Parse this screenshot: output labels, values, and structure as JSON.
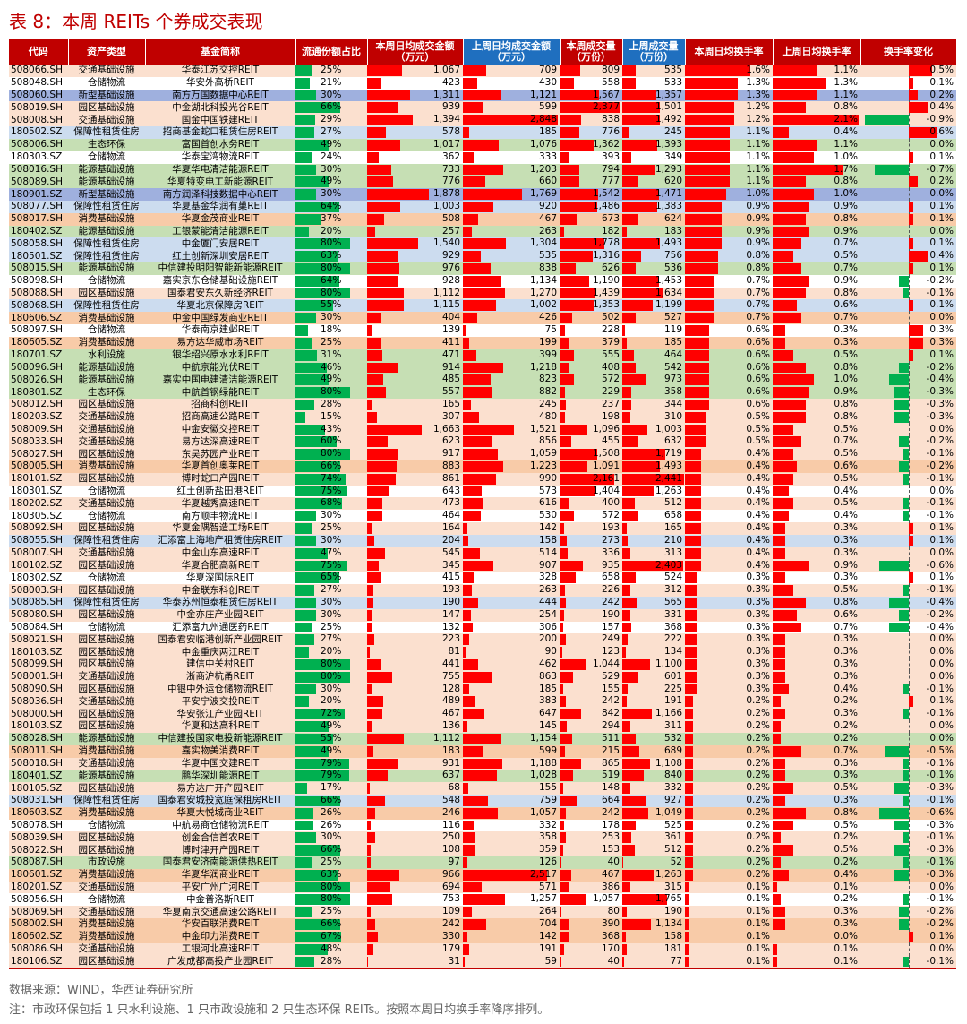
{
  "title": "表 8：本周 REITs 个券成交表现",
  "columns": [
    "代码",
    "资产类型",
    "基金简称",
    "流通份额占比",
    "本周日均成交金额（万元）",
    "上周日均成交金额（万元）",
    "本周成交量（万份）",
    "上周成交量（万份）",
    "本周日均换手率",
    "上周日均换手率",
    "换手率变化"
  ],
  "source": "数据来源：WIND，华西证券研究所",
  "note": "注：市政环保包括 1 只水利设施、1 只市政设施和 2 只生态环保 REITs。按照本周日均换手率降序排列。",
  "bar_colors": {
    "positive": "#ff0000",
    "negative": "#00b050",
    "share": "#00b050"
  },
  "rows": [
    [
      "508066.SH",
      "交通基础设施",
      "华泰江苏交控REIT",
      "25%",
      "1,067",
      "709",
      "809",
      "535",
      "1.6%",
      "1.1%",
      "0.5%",
      "peach"
    ],
    [
      "508048.SH",
      "仓储物流",
      "华安外高桥REIT",
      "21%",
      "423",
      "430",
      "558",
      "533",
      "1.3%",
      "1.3%",
      "0.1%",
      "white"
    ],
    [
      "508060.SH",
      "新型基础设施",
      "南方万国数据中心REIT",
      "30%",
      "1,311",
      "1,121",
      "1,567",
      "1,357",
      "1.3%",
      "1.1%",
      "0.2%",
      "purple"
    ],
    [
      "508019.SH",
      "园区基础设施",
      "中金湖北科投光谷REIT",
      "66%",
      "939",
      "599",
      "2,377",
      "1,501",
      "1.2%",
      "0.8%",
      "0.4%",
      "peach"
    ],
    [
      "508008.SH",
      "交通基础设施",
      "国金中国铁建REIT",
      "29%",
      "1,394",
      "2,848",
      "838",
      "1,492",
      "1.2%",
      "2.1%",
      "-0.9%",
      "peach"
    ],
    [
      "180502.SZ",
      "保障性租赁住房",
      "招商基金蛇口租赁住房REIT",
      "27%",
      "578",
      "185",
      "776",
      "245",
      "1.1%",
      "0.4%",
      "0.6%",
      "blue"
    ],
    [
      "508006.SH",
      "生态环保",
      "富国首创水务REIT",
      "49%",
      "1,017",
      "1,076",
      "1,362",
      "1,393",
      "1.1%",
      "1.1%",
      "0.0%",
      "green"
    ],
    [
      "180303.SZ",
      "仓储物流",
      "华泰宝湾物流REIT",
      "24%",
      "362",
      "333",
      "393",
      "349",
      "1.1%",
      "1.0%",
      "0.1%",
      "white"
    ],
    [
      "508016.SH",
      "能源基础设施",
      "华夏华电清洁能源REIT",
      "30%",
      "733",
      "1,203",
      "794",
      "1,293",
      "1.1%",
      "1.7%",
      "-0.7%",
      "green"
    ],
    [
      "508089.SH",
      "能源基础设施",
      "华夏特变电工新能源REIT",
      "49%",
      "776",
      "660",
      "777",
      "620",
      "1.1%",
      "0.8%",
      "0.2%",
      "green"
    ],
    [
      "180901.SZ",
      "新型基础设施",
      "南方润泽科技数据中心REIT",
      "30%",
      "1,878",
      "1,769",
      "1,542",
      "1,471",
      "1.0%",
      "1.0%",
      "0.0%",
      "purple"
    ],
    [
      "508077.SH",
      "保障性租赁住房",
      "华夏基金华润有巢REIT",
      "64%",
      "1,003",
      "920",
      "1,486",
      "1,383",
      "0.9%",
      "0.9%",
      "0.1%",
      "blue"
    ],
    [
      "508017.SH",
      "消费基础设施",
      "华夏金茂商业REIT",
      "37%",
      "508",
      "467",
      "673",
      "624",
      "0.9%",
      "0.8%",
      "0.1%",
      "orange"
    ],
    [
      "180402.SZ",
      "能源基础设施",
      "工银蒙能清洁能源REIT",
      "20%",
      "257",
      "263",
      "182",
      "183",
      "0.9%",
      "0.9%",
      "0.0%",
      "green"
    ],
    [
      "508058.SH",
      "保障性租赁住房",
      "中金厦门安居REIT",
      "80%",
      "1,540",
      "1,304",
      "1,778",
      "1,493",
      "0.9%",
      "0.7%",
      "0.1%",
      "blue"
    ],
    [
      "180501.SZ",
      "保障性租赁住房",
      "红土创新深圳安居REIT",
      "63%",
      "929",
      "535",
      "1,316",
      "756",
      "0.8%",
      "0.5%",
      "0.4%",
      "blue"
    ],
    [
      "508015.SH",
      "能源基础设施",
      "中信建投明阳智能新能源REIT",
      "80%",
      "976",
      "838",
      "626",
      "536",
      "0.8%",
      "0.7%",
      "0.1%",
      "green"
    ],
    [
      "508098.SH",
      "仓储物流",
      "嘉实京东仓储基础设施REIT",
      "64%",
      "928",
      "1,134",
      "1,190",
      "1,453",
      "0.7%",
      "0.9%",
      "-0.2%",
      "white"
    ],
    [
      "508088.SH",
      "园区基础设施",
      "国泰君安东久新经济REIT",
      "80%",
      "1,112",
      "1,270",
      "1,439",
      "1,634",
      "0.7%",
      "0.8%",
      "-0.1%",
      "peach"
    ],
    [
      "508068.SH",
      "保障性租赁住房",
      "华夏北京保障房REIT",
      "55%",
      "1,115",
      "1,002",
      "1,353",
      "1,199",
      "0.7%",
      "0.6%",
      "0.1%",
      "blue"
    ],
    [
      "180606.SZ",
      "消费基础设施",
      "中金中国绿发商业REIT",
      "30%",
      "404",
      "426",
      "502",
      "527",
      "0.7%",
      "0.7%",
      "0.0%",
      "orange"
    ],
    [
      "508097.SH",
      "仓储物流",
      "华泰南京建邺REIT",
      "18%",
      "139",
      "75",
      "228",
      "119",
      "0.6%",
      "0.3%",
      "0.3%",
      "white"
    ],
    [
      "180605.SZ",
      "消费基础设施",
      "易方达华威市场REIT",
      "25%",
      "411",
      "199",
      "379",
      "185",
      "0.6%",
      "0.3%",
      "0.3%",
      "orange"
    ],
    [
      "180701.SZ",
      "水利设施",
      "银华绍兴原水水利REIT",
      "31%",
      "471",
      "399",
      "555",
      "464",
      "0.6%",
      "0.5%",
      "0.1%",
      "green"
    ],
    [
      "508096.SH",
      "能源基础设施",
      "中航京能光伏REIT",
      "46%",
      "914",
      "1,218",
      "408",
      "542",
      "0.6%",
      "0.8%",
      "-0.2%",
      "green"
    ],
    [
      "508026.SH",
      "能源基础设施",
      "嘉实中国电建清洁能源REIT",
      "49%",
      "485",
      "823",
      "572",
      "973",
      "0.6%",
      "1.0%",
      "-0.4%",
      "green"
    ],
    [
      "180801.SZ",
      "生态环保",
      "中航首钢绿能REIT",
      "80%",
      "557",
      "882",
      "229",
      "358",
      "0.6%",
      "0.9%",
      "-0.3%",
      "green"
    ],
    [
      "508012.SH",
      "园区基础设施",
      "招商科创REIT",
      "28%",
      "165",
      "245",
      "237",
      "344",
      "0.6%",
      "0.8%",
      "-0.3%",
      "peach"
    ],
    [
      "180203.SZ",
      "交通基础设施",
      "招商高速公路REIT",
      "15%",
      "307",
      "480",
      "198",
      "310",
      "0.5%",
      "0.8%",
      "-0.3%",
      "peach"
    ],
    [
      "508009.SH",
      "交通基础设施",
      "中金安徽交控REIT",
      "43%",
      "1,663",
      "1,521",
      "1,096",
      "1,003",
      "0.5%",
      "0.5%",
      "0.0%",
      "peach"
    ],
    [
      "508033.SH",
      "交通基础设施",
      "易方达深高速REIT",
      "60%",
      "623",
      "856",
      "455",
      "632",
      "0.5%",
      "0.7%",
      "-0.2%",
      "peach"
    ],
    [
      "508027.SH",
      "园区基础设施",
      "东吴苏园产业REIT",
      "80%",
      "917",
      "1,059",
      "1,508",
      "1,719",
      "0.4%",
      "0.5%",
      "-0.1%",
      "peach"
    ],
    [
      "508005.SH",
      "消费基础设施",
      "华夏首创奥莱REIT",
      "66%",
      "883",
      "1,223",
      "1,091",
      "1,493",
      "0.4%",
      "0.6%",
      "-0.2%",
      "orange"
    ],
    [
      "180101.SZ",
      "园区基础设施",
      "博时蛇口产园REIT",
      "74%",
      "861",
      "990",
      "2,161",
      "2,441",
      "0.4%",
      "0.5%",
      "-0.1%",
      "peach"
    ],
    [
      "180301.SZ",
      "仓储物流",
      "红土创新盐田港REIT",
      "75%",
      "643",
      "573",
      "1,404",
      "1,263",
      "0.4%",
      "0.4%",
      "0.0%",
      "white"
    ],
    [
      "180202.SZ",
      "交通基础设施",
      "华夏越秀高速REIT",
      "68%",
      "473",
      "616",
      "400",
      "512",
      "0.4%",
      "0.5%",
      "-0.1%",
      "peach"
    ],
    [
      "180305.SZ",
      "仓储物流",
      "南方顺丰物流REIT",
      "30%",
      "464",
      "530",
      "572",
      "658",
      "0.4%",
      "0.4%",
      "-0.1%",
      "white"
    ],
    [
      "508092.SH",
      "园区基础设施",
      "华夏金隅智造工场REIT",
      "25%",
      "164",
      "142",
      "193",
      "165",
      "0.4%",
      "0.3%",
      "0.1%",
      "peach"
    ],
    [
      "508055.SH",
      "保障性租赁住房",
      "汇添富上海地产租赁住房REIT",
      "30%",
      "204",
      "158",
      "273",
      "210",
      "0.4%",
      "0.3%",
      "0.1%",
      "blue"
    ],
    [
      "508007.SH",
      "交通基础设施",
      "中金山东高速REIT",
      "47%",
      "545",
      "514",
      "336",
      "313",
      "0.4%",
      "0.3%",
      "0.0%",
      "peach"
    ],
    [
      "180102.SZ",
      "园区基础设施",
      "华夏合肥高新REIT",
      "75%",
      "345",
      "907",
      "935",
      "2,403",
      "0.4%",
      "0.9%",
      "-0.6%",
      "peach"
    ],
    [
      "180302.SZ",
      "仓储物流",
      "华夏深国际REIT",
      "65%",
      "415",
      "328",
      "658",
      "524",
      "0.3%",
      "0.3%",
      "0.1%",
      "white"
    ],
    [
      "508003.SH",
      "园区基础设施",
      "中金联东科创REIT",
      "27%",
      "193",
      "263",
      "226",
      "312",
      "0.3%",
      "0.5%",
      "-0.1%",
      "peach"
    ],
    [
      "508085.SH",
      "保障性租赁住房",
      "华泰苏州恒泰租赁住房REIT",
      "30%",
      "190",
      "444",
      "242",
      "565",
      "0.3%",
      "0.8%",
      "-0.4%",
      "blue"
    ],
    [
      "508080.SH",
      "园区基础设施",
      "中金亦庄产业园REIT",
      "30%",
      "147",
      "254",
      "190",
      "331",
      "0.3%",
      "0.6%",
      "-0.2%",
      "peach"
    ],
    [
      "508084.SH",
      "仓储物流",
      "汇添富九州通医药REIT",
      "25%",
      "132",
      "306",
      "157",
      "368",
      "0.3%",
      "0.7%",
      "-0.4%",
      "white"
    ],
    [
      "508021.SH",
      "园区基础设施",
      "国泰君安临港创新产业园REIT",
      "27%",
      "223",
      "200",
      "249",
      "222",
      "0.3%",
      "0.3%",
      "0.0%",
      "peach"
    ],
    [
      "180103.SZ",
      "园区基础设施",
      "中金重庆两江REIT",
      "20%",
      "81",
      "90",
      "123",
      "134",
      "0.3%",
      "0.3%",
      "0.0%",
      "peach"
    ],
    [
      "508099.SH",
      "园区基础设施",
      "建信中关村REIT",
      "80%",
      "441",
      "462",
      "1,044",
      "1,100",
      "0.3%",
      "0.3%",
      "0.0%",
      "peach"
    ],
    [
      "508001.SH",
      "交通基础设施",
      "浙商沪杭甬REIT",
      "80%",
      "755",
      "863",
      "529",
      "601",
      "0.3%",
      "0.3%",
      "0.0%",
      "peach"
    ],
    [
      "508090.SH",
      "园区基础设施",
      "中银中外运仓储物流REIT",
      "30%",
      "128",
      "185",
      "155",
      "225",
      "0.3%",
      "0.4%",
      "-0.1%",
      "peach"
    ],
    [
      "508036.SH",
      "交通基础设施",
      "平安宁波交投REIT",
      "20%",
      "489",
      "383",
      "242",
      "191",
      "0.2%",
      "0.2%",
      "0.1%",
      "peach"
    ],
    [
      "508000.SH",
      "园区基础设施",
      "华安张江产业园REIT",
      "72%",
      "467",
      "647",
      "842",
      "1,166",
      "0.2%",
      "0.3%",
      "-0.1%",
      "peach"
    ],
    [
      "180103.SZ",
      "园区基础设施",
      "华夏和达高科REIT",
      "49%",
      "136",
      "145",
      "294",
      "311",
      "0.2%",
      "0.2%",
      "0.0%",
      "peach"
    ],
    [
      "508028.SH",
      "能源基础设施",
      "中信建投国家电投新能源REIT",
      "55%",
      "1,112",
      "1,154",
      "511",
      "532",
      "0.2%",
      "0.2%",
      "0.0%",
      "green"
    ],
    [
      "508011.SH",
      "消费基础设施",
      "嘉实物美消费REIT",
      "49%",
      "183",
      "599",
      "215",
      "689",
      "0.2%",
      "0.7%",
      "-0.5%",
      "orange"
    ],
    [
      "508018.SH",
      "交通基础设施",
      "华夏中国交建REIT",
      "79%",
      "931",
      "1,188",
      "865",
      "1,108",
      "0.2%",
      "0.3%",
      "-0.1%",
      "peach"
    ],
    [
      "180401.SZ",
      "能源基础设施",
      "鹏华深圳能源REIT",
      "79%",
      "637",
      "1,028",
      "519",
      "840",
      "0.2%",
      "0.3%",
      "-0.1%",
      "green"
    ],
    [
      "180105.SZ",
      "园区基础设施",
      "易方达广开产园REIT",
      "17%",
      "68",
      "155",
      "148",
      "332",
      "0.2%",
      "0.5%",
      "-0.3%",
      "peach"
    ],
    [
      "508031.SH",
      "保障性租赁住房",
      "国泰君安城投宽庭保租房REIT",
      "66%",
      "548",
      "759",
      "664",
      "927",
      "0.2%",
      "0.3%",
      "-0.1%",
      "blue"
    ],
    [
      "180603.SZ",
      "消费基础设施",
      "华夏大悦城商业REIT",
      "26%",
      "246",
      "1,057",
      "242",
      "1,049",
      "0.2%",
      "0.8%",
      "-0.6%",
      "orange"
    ],
    [
      "508078.SH",
      "仓储物流",
      "中航易商仓储物流REIT",
      "26%",
      "116",
      "332",
      "178",
      "525",
      "0.2%",
      "0.5%",
      "-0.3%",
      "white"
    ],
    [
      "508039.SH",
      "园区基础设施",
      "创金合信首农REIT",
      "30%",
      "250",
      "358",
      "253",
      "361",
      "0.2%",
      "0.2%",
      "-0.1%",
      "peach"
    ],
    [
      "508022.SH",
      "园区基础设施",
      "博时津开产园REIT",
      "66%",
      "108",
      "359",
      "153",
      "512",
      "0.2%",
      "0.5%",
      "-0.3%",
      "peach"
    ],
    [
      "508087.SH",
      "市政设施",
      "国泰君安济南能源供热REIT",
      "25%",
      "97",
      "126",
      "40",
      "52",
      "0.2%",
      "0.2%",
      "-0.1%",
      "green"
    ],
    [
      "180601.SZ",
      "消费基础设施",
      "华夏华润商业REIT",
      "63%",
      "966",
      "2,517",
      "467",
      "1,263",
      "0.2%",
      "0.4%",
      "-0.3%",
      "orange"
    ],
    [
      "180201.SZ",
      "交通基础设施",
      "平安广州广河REIT",
      "80%",
      "694",
      "571",
      "386",
      "315",
      "0.1%",
      "0.1%",
      "0.0%",
      "peach"
    ],
    [
      "508056.SH",
      "仓储物流",
      "中金普洛斯REIT",
      "80%",
      "753",
      "1,257",
      "1,057",
      "1,765",
      "0.1%",
      "0.2%",
      "-0.1%",
      "white"
    ],
    [
      "508069.SH",
      "交通基础设施",
      "华夏南京交通高速公路REIT",
      "25%",
      "109",
      "264",
      "80",
      "190",
      "0.1%",
      "0.3%",
      "-0.2%",
      "peach"
    ],
    [
      "508002.SH",
      "消费基础设施",
      "华安百联消费REIT",
      "66%",
      "242",
      "704",
      "390",
      "1,134",
      "0.1%",
      "0.3%",
      "-0.2%",
      "orange"
    ],
    [
      "180602.SZ",
      "消费基础设施",
      "中金印力消费REIT",
      "67%",
      "330",
      "142",
      "368",
      "158",
      "0.1%",
      "0.0%",
      "0.1%",
      "orange"
    ],
    [
      "508086.SH",
      "交通基础设施",
      "工银河北高速REIT",
      "48%",
      "179",
      "191",
      "170",
      "181",
      "0.1%",
      "0.1%",
      "0.0%",
      "peach"
    ],
    [
      "180106.SZ",
      "园区基础设施",
      "广发成都高投产业园REIT",
      "28%",
      "31",
      "59",
      "40",
      "77",
      "0.1%",
      "0.1%",
      "-0.1%",
      "peach"
    ]
  ]
}
